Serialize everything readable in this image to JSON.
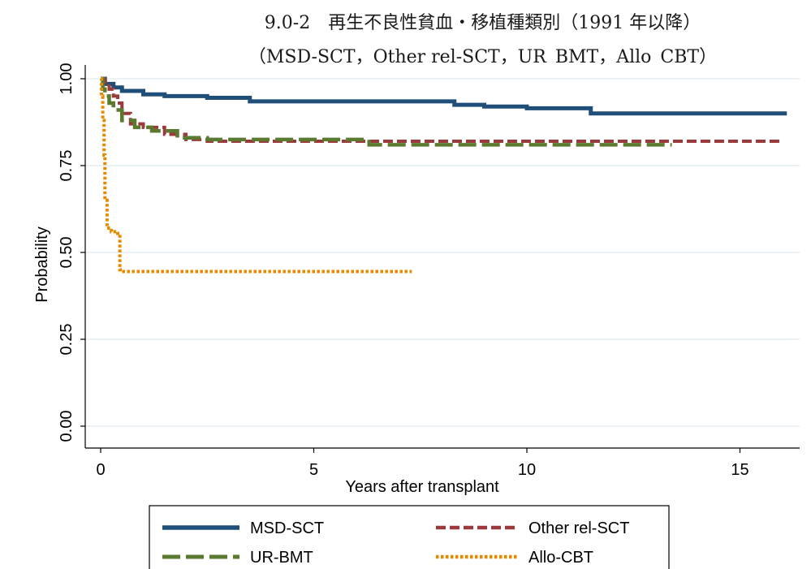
{
  "chart_data": {
    "type": "line",
    "title_line1": "9.0-2　再生不良性貧血・移植種類別（1991 年以降）",
    "title_line2": "（MSD-SCT，Other rel-SCT，UR_BMT，Allo_CBT）",
    "xlabel": "Years after transplant",
    "ylabel": "Probability",
    "xlim": [
      0,
      16.2
    ],
    "ylim": [
      0,
      1.0
    ],
    "x_ticks": [
      "0",
      "5",
      "10",
      "15"
    ],
    "y_ticks": [
      "0.00",
      "0.25",
      "0.50",
      "0.75",
      "1.00"
    ],
    "x_tick_values": [
      0,
      5,
      10,
      15
    ],
    "y_tick_values": [
      0,
      0.25,
      0.5,
      0.75,
      1.0
    ],
    "grid": true,
    "legend_position": "bottom",
    "series": [
      {
        "name": "MSD-SCT",
        "color": "#1f4e79",
        "dash": "solid",
        "x": [
          0,
          0.1,
          0.3,
          0.5,
          1.0,
          1.5,
          2.5,
          3.5,
          5,
          7,
          8.3,
          9.0,
          10,
          11.5,
          14,
          16.1
        ],
        "y": [
          1.0,
          0.985,
          0.975,
          0.965,
          0.955,
          0.95,
          0.945,
          0.935,
          0.935,
          0.935,
          0.925,
          0.92,
          0.915,
          0.9,
          0.9,
          0.9
        ]
      },
      {
        "name": "Other rel-SCT",
        "color": "#9b3a3a",
        "dash": "dashed",
        "x": [
          0,
          0.05,
          0.1,
          0.2,
          0.3,
          0.4,
          0.5,
          0.7,
          1.0,
          1.5,
          2.0,
          2.5,
          5,
          8,
          12,
          16
        ],
        "y": [
          1.0,
          1.0,
          0.99,
          0.97,
          0.95,
          0.93,
          0.9,
          0.87,
          0.86,
          0.84,
          0.825,
          0.82,
          0.82,
          0.82,
          0.82,
          0.82
        ]
      },
      {
        "name": "UR-BMT",
        "color": "#5a7a2f",
        "dash": "longdash",
        "x": [
          0,
          0.05,
          0.1,
          0.2,
          0.3,
          0.5,
          0.8,
          1.2,
          1.8,
          2.5,
          5,
          6.3,
          8,
          11,
          13.4
        ],
        "y": [
          1.0,
          0.97,
          0.95,
          0.93,
          0.91,
          0.88,
          0.86,
          0.85,
          0.83,
          0.825,
          0.825,
          0.81,
          0.81,
          0.81,
          0.81
        ]
      },
      {
        "name": "Allo-CBT",
        "color": "#e68a00",
        "dash": "dotted",
        "x": [
          0,
          0.02,
          0.05,
          0.08,
          0.1,
          0.15,
          0.25,
          0.35,
          0.4,
          0.45,
          0.5,
          2,
          5,
          7.3
        ],
        "y": [
          1.0,
          0.95,
          0.88,
          0.78,
          0.65,
          0.57,
          0.56,
          0.56,
          0.555,
          0.45,
          0.445,
          0.445,
          0.445,
          0.445
        ]
      }
    ]
  }
}
